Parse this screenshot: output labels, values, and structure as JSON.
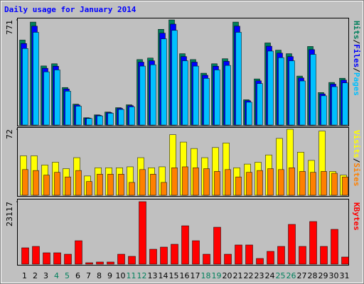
{
  "chart_data": [
    {
      "type": "bar",
      "title": "Daily usage for January 2014",
      "title_color": "#0000ff",
      "ylim": [
        0,
        771
      ],
      "yticks": [
        771
      ],
      "legend_separator": "/",
      "series": [
        {
          "name": "Hits",
          "color": "#00805c",
          "values": [
            623,
            755,
            433,
            449,
            275,
            153,
            53,
            74,
            95,
            127,
            148,
            480,
            491,
            702,
            771,
            523,
            480,
            380,
            449,
            486,
            755,
            185,
            338,
            602,
            549,
            523,
            359,
            576,
            238,
            312,
            343
          ]
        },
        {
          "name": "Files",
          "color": "#0000ff",
          "values": [
            598,
            725,
            416,
            431,
            264,
            147,
            51,
            71,
            91,
            122,
            142,
            461,
            471,
            674,
            740,
            502,
            461,
            365,
            431,
            467,
            725,
            178,
            324,
            578,
            527,
            502,
            345,
            553,
            228,
            300,
            329
          ]
        },
        {
          "name": "Pages",
          "color": "#00c0ff",
          "values": [
            561,
            680,
            390,
            404,
            248,
            138,
            48,
            67,
            86,
            114,
            133,
            432,
            442,
            632,
            694,
            471,
            432,
            342,
            404,
            437,
            680,
            167,
            304,
            542,
            494,
            471,
            323,
            518,
            214,
            281,
            309
          ]
        }
      ]
    },
    {
      "type": "bar",
      "ylim": [
        0,
        72
      ],
      "yticks": [
        72
      ],
      "legend_separator": "/",
      "series": [
        {
          "name": "Visits",
          "color": "#ffff00",
          "values": [
            43,
            43,
            33,
            36,
            29,
            41,
            21,
            30,
            30,
            30,
            31,
            41,
            30,
            31,
            66,
            58,
            51,
            41,
            52,
            57,
            30,
            34,
            36,
            44,
            62,
            72,
            47,
            38,
            70,
            26,
            22
          ]
        },
        {
          "name": "Sites",
          "color": "#ff8000",
          "values": [
            28,
            27,
            22,
            25,
            20,
            27,
            15,
            23,
            23,
            23,
            14,
            28,
            23,
            14,
            30,
            31,
            30,
            29,
            26,
            28,
            20,
            25,
            27,
            29,
            28,
            30,
            26,
            25,
            26,
            24,
            20
          ]
        }
      ]
    },
    {
      "type": "bar",
      "ylim": [
        0,
        23117
      ],
      "yticks": [
        23117
      ],
      "categories": [
        "1",
        "2",
        "3",
        "4",
        "5",
        "6",
        "7",
        "8",
        "9",
        "10",
        "11",
        "12",
        "13",
        "14",
        "15",
        "16",
        "17",
        "18",
        "19",
        "20",
        "21",
        "22",
        "23",
        "24",
        "25",
        "26",
        "27",
        "28",
        "29",
        "30",
        "31"
      ],
      "category_colors": [
        "#000000",
        "#000000",
        "#000000",
        "#00805c",
        "#00805c",
        "#000000",
        "#000000",
        "#000000",
        "#000000",
        "#000000",
        "#00805c",
        "#00805c",
        "#000000",
        "#000000",
        "#000000",
        "#000000",
        "#000000",
        "#00805c",
        "#00805c",
        "#000000",
        "#000000",
        "#000000",
        "#000000",
        "#000000",
        "#00805c",
        "#00805c",
        "#000000",
        "#000000",
        "#000000",
        "#000000",
        "#000000"
      ],
      "series": [
        {
          "name": "KBytes",
          "color": "#ff0000",
          "values": [
            6042,
            6568,
            4203,
            4203,
            3677,
            8669,
            525,
            788,
            788,
            3677,
            2890,
            23117,
            5517,
            6305,
            7356,
            14186,
            8669,
            3677,
            13660,
            3677,
            7093,
            7093,
            2102,
            4729,
            6568,
            14711,
            6568,
            15762,
            6568,
            12873,
            2627
          ]
        }
      ]
    }
  ]
}
